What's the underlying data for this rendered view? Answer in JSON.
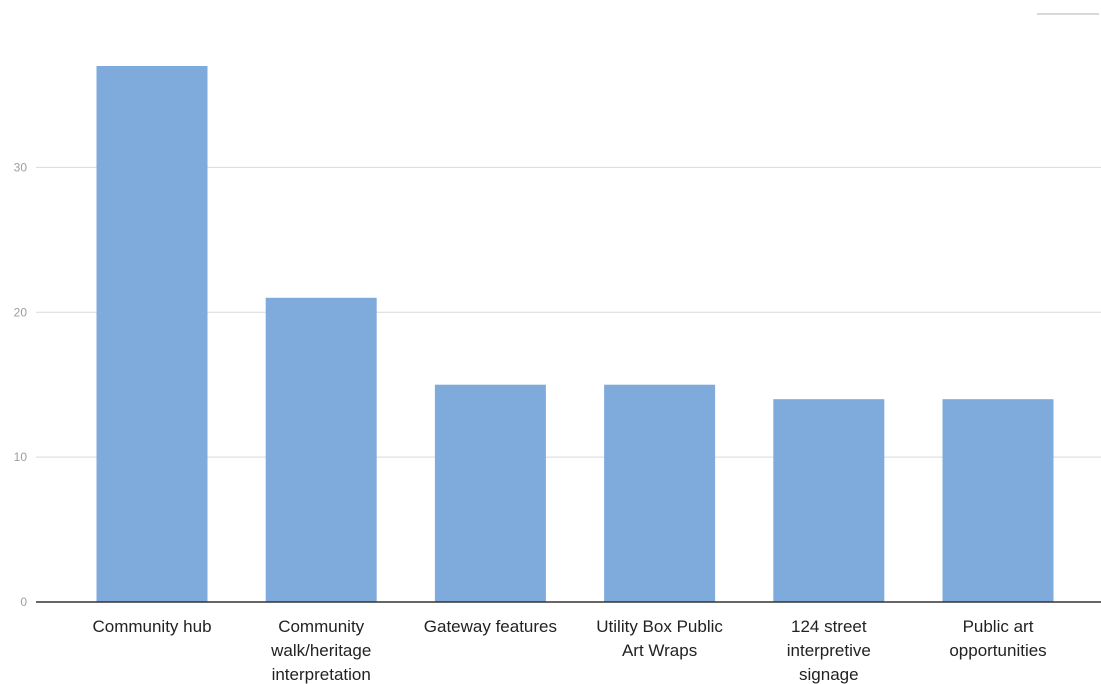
{
  "chart_data": {
    "type": "bar",
    "categories": [
      "Community hub",
      "Community walk/heritage interpretation",
      "Gateway features",
      "Utility Box Public Art Wraps",
      "124 street interpretive signage",
      "Public art opportunities"
    ],
    "category_label_lines": [
      [
        "Community hub"
      ],
      [
        "Community",
        "walk/heritage",
        "interpretation"
      ],
      [
        "Gateway features"
      ],
      [
        "Utility Box Public",
        "Art Wraps"
      ],
      [
        "124 street",
        "interpretive",
        "signage"
      ],
      [
        "Public art",
        "opportunities"
      ]
    ],
    "values": [
      37,
      21,
      15,
      15,
      14,
      14
    ],
    "ylim": [
      0,
      37
    ],
    "yticks": [
      0,
      10,
      20,
      30
    ],
    "title": "",
    "xlabel": "",
    "ylabel": "",
    "grid": true,
    "bar_color": "#7faadc",
    "grid_color": "#d9d9d9",
    "axis_color": "#333333"
  }
}
